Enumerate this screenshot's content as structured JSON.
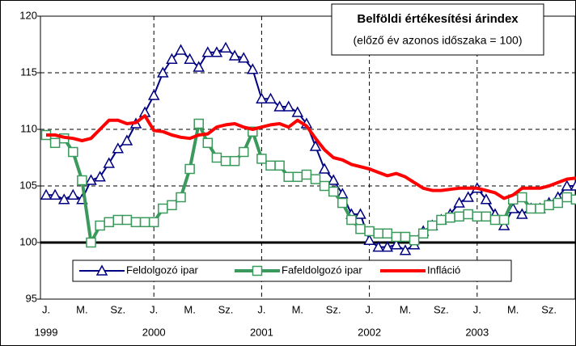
{
  "chart_data": {
    "type": "line",
    "title": "Belföldi értékesítési árindex",
    "subtitle": "(előző év azonos időszaka = 100)",
    "categories": [
      "J.",
      null,
      null,
      null,
      "M.",
      null,
      null,
      null,
      "Sz.",
      null,
      null,
      null,
      "J.",
      null,
      null,
      null,
      "M.",
      null,
      null,
      null,
      "Sz.",
      null,
      null,
      null,
      "J.",
      null,
      null,
      null,
      "M.",
      null,
      null,
      null,
      "Sz.",
      null,
      null,
      null,
      "J.",
      null,
      null,
      null,
      "M.",
      null,
      null,
      null,
      "Sz.",
      null,
      null,
      null,
      "J.",
      null,
      null,
      null,
      "M.",
      null,
      null,
      null,
      "Sz.",
      null,
      null,
      null
    ],
    "category_years": [
      "1999",
      null,
      null,
      null,
      null,
      null,
      null,
      null,
      null,
      null,
      null,
      null,
      "2000",
      null,
      null,
      null,
      null,
      null,
      null,
      null,
      null,
      null,
      null,
      null,
      "2001",
      null,
      null,
      null,
      null,
      null,
      null,
      null,
      null,
      null,
      null,
      null,
      "2002",
      null,
      null,
      null,
      null,
      null,
      null,
      null,
      null,
      null,
      null,
      null,
      "2003",
      null,
      null,
      null,
      null,
      null,
      null,
      null,
      null,
      null,
      null,
      null
    ],
    "series": [
      {
        "name": "Feldolgozó ipar",
        "color": "#000080",
        "marker": "triangle",
        "values": [
          104.2,
          104.2,
          103.8,
          104.2,
          103.8,
          105.5,
          105.8,
          107,
          108.3,
          109,
          110.5,
          111.5,
          113,
          115,
          116.2,
          117,
          116.2,
          115.5,
          116.8,
          116.8,
          117.2,
          116.5,
          116.3,
          115.3,
          112.7,
          112.7,
          112,
          112,
          111.5,
          110.5,
          108.5,
          106.5,
          105.5,
          104.3,
          102.5,
          102.5,
          100.2,
          99.6,
          99.6,
          99.8,
          99.3,
          99.8,
          101,
          101.5,
          102,
          102.5,
          103.5,
          104,
          104.8,
          103.8,
          102.5,
          101.5,
          103,
          102.5,
          103,
          103,
          103.5,
          104,
          105,
          105
        ]
      },
      {
        "name": "Fafeldolgozó ipar",
        "color": "#3a9a5c",
        "marker": "square",
        "values": [
          109.5,
          108.8,
          109.2,
          108,
          105.5,
          100,
          101.5,
          101.8,
          102,
          102,
          101.8,
          101.8,
          101.8,
          103,
          103.3,
          104,
          106.5,
          110.5,
          108.8,
          107.5,
          107.2,
          107.2,
          108,
          109.8,
          107.4,
          106.8,
          106.8,
          105.8,
          105.8,
          106,
          105.6,
          105,
          104.5,
          103.5,
          102,
          101.2,
          101,
          100.8,
          100.8,
          100.5,
          100.5,
          100.2,
          100.8,
          101.5,
          102,
          102.2,
          102.3,
          102.5,
          102.3,
          102.3,
          102,
          102,
          103.8,
          104,
          103,
          103,
          103.3,
          103.5,
          104,
          103.8
        ]
      },
      {
        "name": "Infláció",
        "color": "#ff0000",
        "marker": "none",
        "values": [
          109.5,
          109.5,
          109.3,
          109.2,
          109,
          109.2,
          110,
          110.8,
          110.8,
          110.5,
          110.6,
          111.2,
          109.9,
          109.8,
          109.5,
          109.3,
          109.2,
          109.5,
          109.6,
          110.2,
          110.4,
          110.5,
          110.2,
          110,
          110.2,
          110.4,
          110.5,
          110.2,
          110.8,
          110.3,
          109.2,
          108.2,
          107.5,
          107.3,
          106.9,
          106.7,
          106.5,
          106.2,
          105.9,
          106.1,
          105.8,
          105.3,
          104.8,
          104.6,
          104.6,
          104.7,
          104.8,
          104.8,
          104.8,
          104.6,
          104.4,
          103.9,
          104.2,
          104.8,
          104.8,
          104.8,
          105,
          105.3,
          105.6,
          105.7
        ]
      }
    ],
    "ylim": [
      95,
      120
    ],
    "yticks": [
      95,
      100,
      105,
      110,
      115,
      120
    ],
    "grid": true,
    "baseline": 100,
    "legend": "bottom"
  }
}
